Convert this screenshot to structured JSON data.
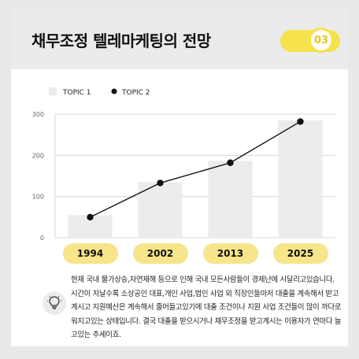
{
  "header": {
    "title": "채무조정 텔레마케팅의 전망",
    "badge": "03"
  },
  "chart_data": {
    "type": "bar",
    "categories": [
      "1994",
      "2002",
      "2013",
      "2025"
    ],
    "series": [
      {
        "name": "TOPIC 1",
        "type": "bar",
        "values": [
          55,
          135,
          187,
          285
        ]
      },
      {
        "name": "TOPIC 2",
        "type": "line",
        "values": [
          50,
          133,
          182,
          282
        ]
      }
    ],
    "yticks": [
      0,
      100,
      200,
      300
    ],
    "ylim": [
      0,
      300
    ],
    "grid": true,
    "legend": "top-left",
    "colors": {
      "bar": "#ececec",
      "line": "#111111",
      "label_pill": "#f6e58a",
      "accent": "#f6e24a"
    }
  },
  "note": {
    "icon": "lightbulb-icon",
    "text": "현재 국내 물가상승,자연재해 등으로 인해 국내 모든사람들이 경제난에 시달리고있습니다. 시간이 지날수록 소상공인 대표,개인 사업,법인 사업 외 직장인들마저 대출을 계속해서 받고 계시고 지원예산은 계속해서 줄어들고있기에 대출 조건이나 지원 사업 조건들이 많이 까다로워지고있는 상태입니다. 결국 대출을 받으시거나 채무조정을 받고계시는 이용자가 연마다 늘고있는 추세이죠."
  }
}
